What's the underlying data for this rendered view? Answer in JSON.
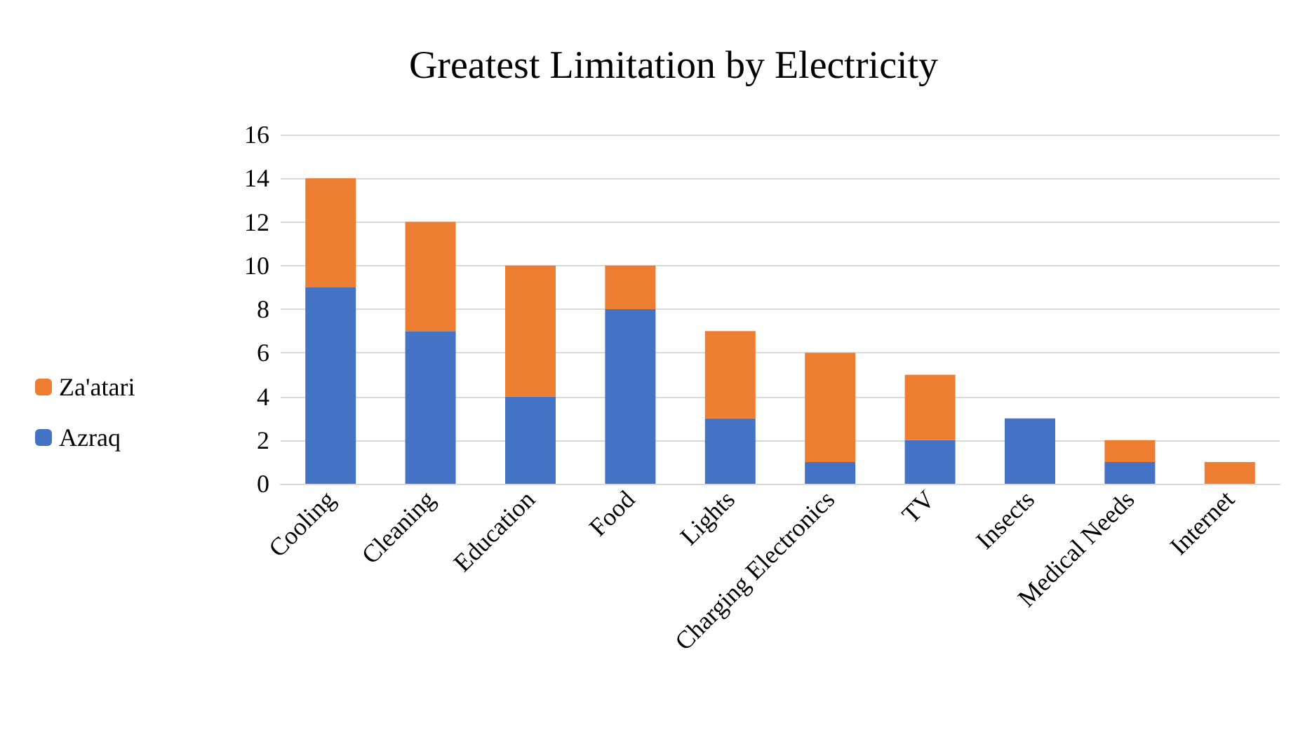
{
  "chart_data": {
    "type": "bar",
    "title": "Greatest Limitation by Electricity",
    "stacked": true,
    "categories": [
      "Cooling",
      "Cleaning",
      "Education",
      "Food",
      "Lights",
      "Charging Electronics",
      "TV",
      "Insects",
      "Medical Needs",
      "Internet"
    ],
    "series": [
      {
        "name": "Azraq",
        "color": "#4472c4",
        "values": [
          9,
          7,
          4,
          8,
          3,
          1,
          2,
          3,
          1,
          0
        ]
      },
      {
        "name": "Za'atari",
        "color": "#ed7d31",
        "values": [
          5,
          5,
          6,
          2,
          4,
          5,
          3,
          0,
          1,
          1
        ]
      }
    ],
    "ylim": [
      0,
      16
    ],
    "yticks": [
      0,
      2,
      4,
      6,
      8,
      10,
      12,
      14,
      16
    ],
    "grid": "y",
    "legend": "left"
  }
}
